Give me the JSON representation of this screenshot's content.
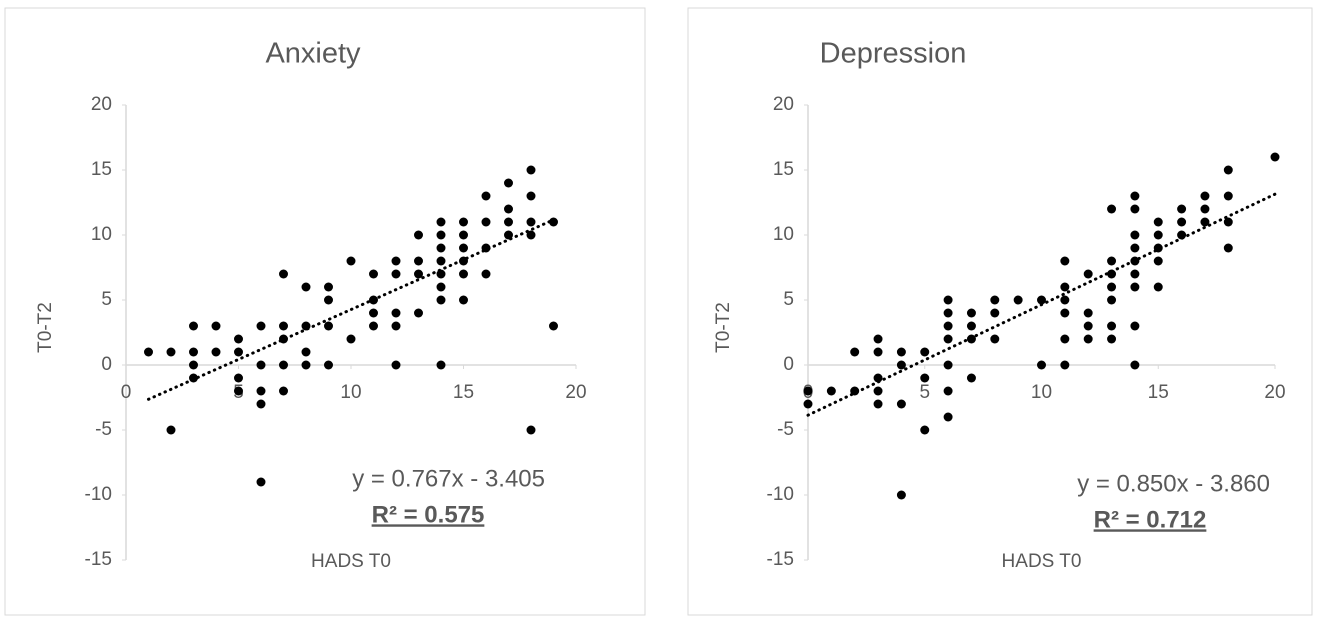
{
  "chart_data": [
    {
      "type": "scatter",
      "title": "Anxiety",
      "xlabel": "HADS T0",
      "ylabel": "T0-T2",
      "xlim": [
        0,
        20
      ],
      "ylim": [
        -15,
        20
      ],
      "xticks": [
        0,
        5,
        10,
        15,
        20
      ],
      "yticks": [
        -15,
        -10,
        -5,
        0,
        5,
        10,
        15,
        20
      ],
      "trendline": {
        "equation": "y = 0.767x - 3.405",
        "r2_label": "R² = 0.575",
        "slope": 0.767,
        "intercept": -3.405
      },
      "series": [
        {
          "color": "#000000",
          "x": [
            1,
            2,
            2,
            3,
            3,
            3,
            3,
            4,
            4,
            5,
            5,
            5,
            5,
            6,
            6,
            6,
            6,
            6,
            7,
            7,
            7,
            7,
            7,
            8,
            8,
            8,
            8,
            9,
            9,
            9,
            9,
            10,
            10,
            11,
            11,
            11,
            11,
            12,
            12,
            12,
            12,
            12,
            13,
            13,
            13,
            13,
            14,
            14,
            14,
            14,
            14,
            14,
            14,
            14,
            15,
            15,
            15,
            15,
            15,
            15,
            16,
            16,
            16,
            16,
            17,
            17,
            17,
            17,
            18,
            18,
            18,
            18,
            18,
            19,
            19
          ],
          "y": [
            1,
            1,
            -5,
            3,
            1,
            0,
            -1,
            3,
            1,
            2,
            1,
            -1,
            -2,
            3,
            0,
            -2,
            -3,
            -9,
            7,
            3,
            2,
            0,
            -2,
            6,
            3,
            1,
            0,
            6,
            5,
            3,
            0,
            8,
            2,
            7,
            5,
            4,
            3,
            8,
            7,
            4,
            3,
            0,
            10,
            8,
            7,
            4,
            11,
            10,
            9,
            8,
            7,
            6,
            5,
            0,
            11,
            10,
            9,
            8,
            7,
            5,
            13,
            11,
            9,
            7,
            14,
            12,
            11,
            10,
            15,
            13,
            11,
            10,
            -5,
            11,
            3
          ]
        }
      ]
    },
    {
      "type": "scatter",
      "title": "Depression",
      "xlabel": "HADS T0",
      "ylabel": "T0-T2",
      "xlim": [
        0,
        20
      ],
      "ylim": [
        -15,
        20
      ],
      "xticks": [
        0,
        5,
        10,
        15,
        20
      ],
      "yticks": [
        -15,
        -10,
        -5,
        0,
        5,
        10,
        15,
        20
      ],
      "trendline": {
        "equation": "y = 0.850x - 3.860",
        "r2_label": "R² = 0.712",
        "slope": 0.85,
        "intercept": -3.86
      },
      "series": [
        {
          "color": "#000000",
          "x": [
            0,
            0,
            1,
            2,
            2,
            3,
            3,
            3,
            3,
            3,
            4,
            4,
            4,
            4,
            5,
            5,
            5,
            6,
            6,
            6,
            6,
            6,
            6,
            6,
            7,
            7,
            7,
            7,
            8,
            8,
            8,
            9,
            10,
            10,
            11,
            11,
            11,
            11,
            11,
            11,
            12,
            12,
            12,
            12,
            13,
            13,
            13,
            13,
            13,
            13,
            13,
            14,
            14,
            14,
            14,
            14,
            14,
            14,
            14,
            14,
            15,
            15,
            15,
            15,
            15,
            16,
            16,
            16,
            17,
            17,
            17,
            18,
            18,
            18,
            18,
            20
          ],
          "y": [
            -2,
            -3,
            -2,
            1,
            -2,
            2,
            1,
            -1,
            -2,
            -3,
            1,
            0,
            -3,
            -10,
            1,
            -1,
            -5,
            5,
            4,
            3,
            2,
            0,
            -2,
            -4,
            4,
            3,
            2,
            -1,
            5,
            4,
            2,
            5,
            5,
            0,
            8,
            6,
            5,
            4,
            2,
            0,
            7,
            4,
            3,
            2,
            12,
            8,
            7,
            6,
            5,
            3,
            2,
            13,
            12,
            10,
            9,
            8,
            7,
            6,
            3,
            0,
            11,
            10,
            9,
            8,
            6,
            12,
            11,
            10,
            13,
            12,
            11,
            15,
            13,
            11,
            9,
            16
          ]
        }
      ]
    }
  ]
}
